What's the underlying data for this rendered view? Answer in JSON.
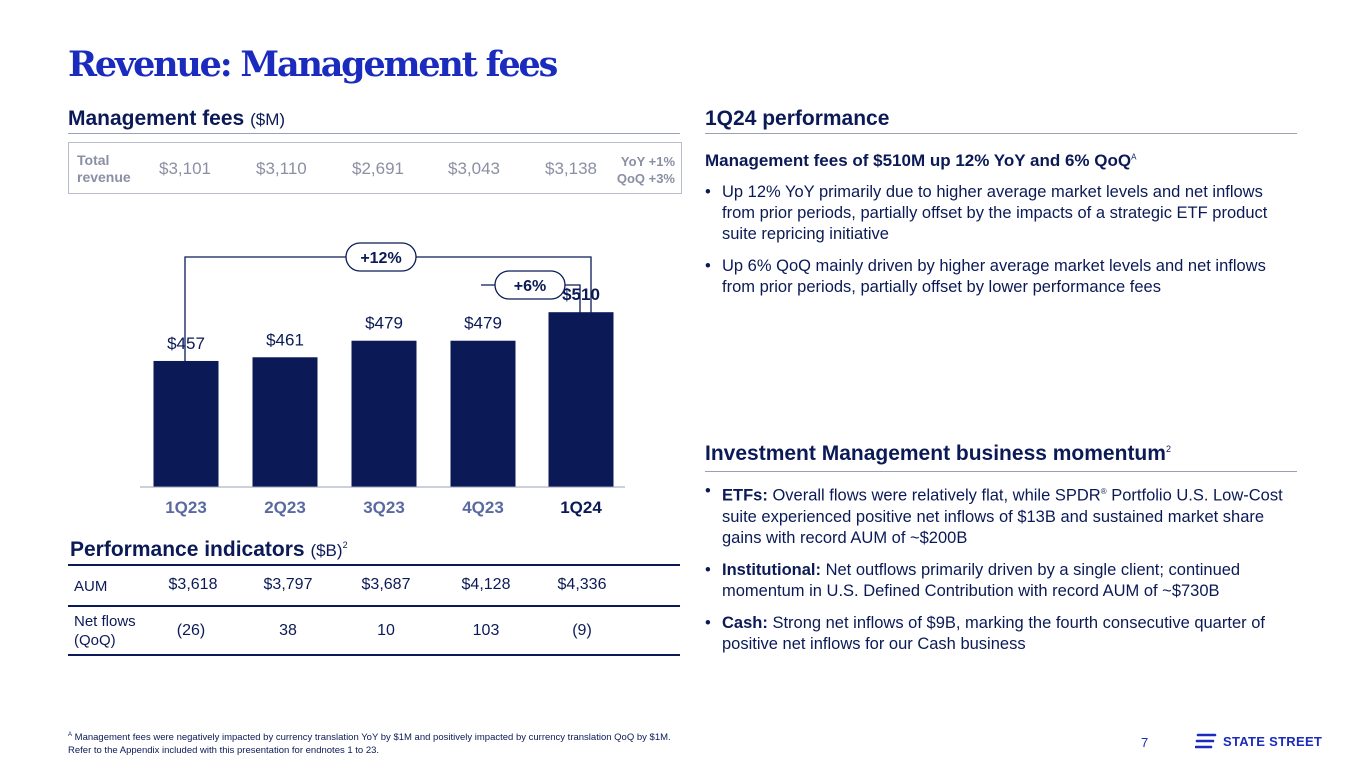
{
  "title": "Revenue: Management fees",
  "left": {
    "heading": "Management fees",
    "heading_unit": "($M)",
    "total_revenue": {
      "label_line1": "Total",
      "label_line2": "revenue",
      "values": [
        "$3,101",
        "$3,110",
        "$2,691",
        "$3,043",
        "$3,138"
      ],
      "yoy": "YoY +1%",
      "qoq": "QoQ +3%"
    }
  },
  "chart_data": {
    "type": "bar",
    "title": "Management fees ($M)",
    "categories": [
      "1Q23",
      "2Q23",
      "3Q23",
      "4Q23",
      "1Q24"
    ],
    "values": [
      457,
      461,
      479,
      479,
      510
    ],
    "value_labels": [
      "$457",
      "$461",
      "$479",
      "$479",
      "$510"
    ],
    "annotations": {
      "yoy": "+12%",
      "qoq": "+6%"
    },
    "bar_color": "#0b1a57"
  },
  "performance": {
    "heading": "Performance indicators",
    "unit": "($B)",
    "sup": "2",
    "aum_label": "AUM",
    "aum": [
      "$3,618",
      "$3,797",
      "$3,687",
      "$4,128",
      "$4,336"
    ],
    "flows_label_line1": "Net flows",
    "flows_label_line2": "(QoQ)",
    "flows": [
      "(26)",
      "38",
      "10",
      "103",
      "(9)"
    ]
  },
  "right": {
    "perf_heading": "1Q24 performance",
    "perf_subhead": "Management fees of $510M up 12% YoY and 6% QoQ",
    "perf_subhead_sup": "A",
    "perf_bullet1": "Up 12% YoY primarily due to higher average market levels and net inflows from prior periods, partially offset by the impacts of a strategic ETF product suite repricing initiative",
    "perf_bullet2": "Up 6% QoQ mainly driven by higher average market levels and net inflows from prior periods, partially offset by lower performance fees",
    "im_heading": "Investment Management business momentum",
    "im_heading_sup": "2",
    "etf_label": "ETFs:",
    "etf_text_a": "Overall flows were relatively flat, while SPDR",
    "etf_reg": "®",
    "etf_text_b": "Portfolio U.S. Low-Cost suite experienced positive net inflows of $13B and sustained market share gains with record AUM of ~$200B",
    "inst_label": "Institutional:",
    "inst_text": "Net outflows primarily driven by a single client; continued momentum in U.S. Defined Contribution with record AUM of ~$730B",
    "cash_label": "Cash:",
    "cash_text": "Strong net inflows of $9B, marking the fourth consecutive quarter of positive net inflows for our Cash business"
  },
  "footnote": {
    "sup": "A",
    "line1": "Management fees were negatively impacted by currency translation YoY by $1M and positively impacted by currency translation QoQ by $1M.",
    "line2": "Refer to the Appendix included with this presentation for endnotes 1 to 23."
  },
  "page_number": "7",
  "logo_text": "STATE STREET",
  "colors": {
    "navy": "#0b1a57",
    "brand_blue": "#1a2bbd",
    "grey": "#8a8fa3"
  }
}
